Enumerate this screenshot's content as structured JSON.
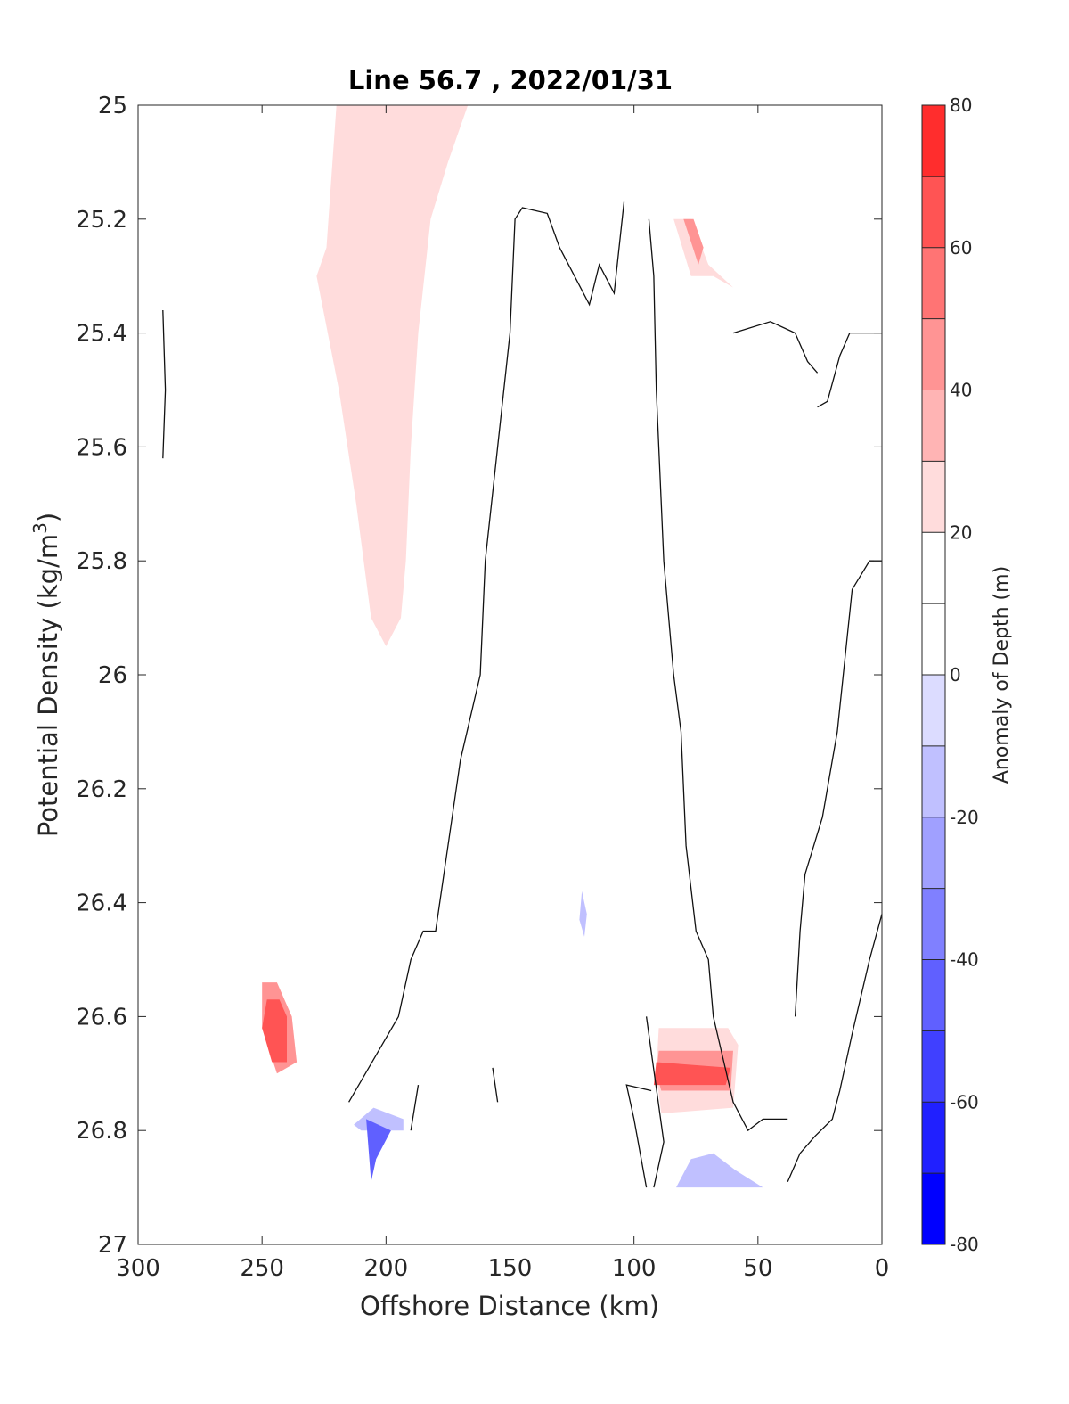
{
  "chart_data": {
    "type": "contour",
    "title": "Line 56.7 , 2022/01/31",
    "xlabel": "Offshore Distance (km)",
    "ylabel_text": "Potential Density (kg/m",
    "ylabel_sup": "3",
    "ylabel_close": ")",
    "xlim": [
      300,
      0
    ],
    "ylim": [
      25,
      27
    ],
    "xticks": [
      "300",
      "250",
      "200",
      "150",
      "100",
      "50",
      "0"
    ],
    "yticks": [
      "25",
      "25.2",
      "25.4",
      "25.6",
      "25.8",
      "26",
      "26.2",
      "26.4",
      "26.6",
      "26.8",
      "27"
    ],
    "colorbar": {
      "label": "Anomaly of Depth (m)",
      "range": [
        -80,
        80
      ],
      "ticks": [
        "80",
        "60",
        "40",
        "20",
        "0",
        "-20",
        "-40",
        "-60",
        "-80"
      ],
      "levels": [
        -80,
        -70,
        -60,
        -50,
        -40,
        -30,
        -20,
        -10,
        0,
        10,
        20,
        30,
        40,
        50,
        60,
        70,
        80
      ],
      "colors": [
        "#0000ff",
        "#2020ff",
        "#4040ff",
        "#6060ff",
        "#8080ff",
        "#a0a0ff",
        "#c0c0ff",
        "#dcdcff",
        "#ffffff",
        "#ffffff",
        "#ffdcdc",
        "#ffb4b4",
        "#ff9494",
        "#ff7474",
        "#ff5454",
        "#ff2d2d",
        "#ff0000"
      ]
    },
    "regions": [
      {
        "level": 15,
        "points": [
          [
            286,
            25
          ],
          [
            173,
            25
          ],
          [
            171,
            25.1
          ],
          [
            151,
            25.1
          ],
          [
            154,
            25.05
          ],
          [
            130,
            25
          ],
          [
            120,
            25
          ],
          [
            113,
            25.05
          ],
          [
            110,
            25.1
          ],
          [
            114,
            25.15
          ],
          [
            120,
            25.1
          ],
          [
            127,
            25.05
          ],
          [
            139,
            25.05
          ],
          [
            150,
            25.1
          ],
          [
            158,
            25.1
          ],
          [
            158,
            25.2
          ],
          [
            160,
            25.4
          ],
          [
            163,
            25.8
          ],
          [
            163,
            26.0
          ],
          [
            165,
            26.1
          ],
          [
            180,
            26.2
          ],
          [
            190,
            26.3
          ],
          [
            194,
            26.4
          ],
          [
            210,
            26.5
          ],
          [
            213,
            26.6
          ],
          [
            222,
            26.7
          ],
          [
            286,
            26.7
          ],
          [
            285,
            26.6
          ],
          [
            290,
            26.55
          ],
          [
            290,
            26.35
          ],
          [
            282,
            26.3
          ],
          [
            265,
            26.45
          ],
          [
            261,
            26.3
          ],
          [
            257,
            26.15
          ],
          [
            248,
            26.05
          ],
          [
            241,
            26.0
          ],
          [
            240,
            25.9
          ],
          [
            241,
            25.7
          ],
          [
            234,
            25.45
          ],
          [
            231,
            25.3
          ],
          [
            240,
            25.1
          ]
        ]
      },
      {
        "level": 25,
        "points": [
          [
            220,
            25
          ],
          [
            167,
            25
          ],
          [
            175,
            25.1
          ],
          [
            182,
            25.2
          ],
          [
            187,
            25.4
          ],
          [
            190,
            25.6
          ],
          [
            192,
            25.8
          ],
          [
            194,
            25.9
          ],
          [
            200,
            25.95
          ],
          [
            206,
            25.9
          ],
          [
            212,
            25.7
          ],
          [
            219,
            25.5
          ],
          [
            228,
            25.3
          ],
          [
            224,
            25.25
          ]
        ]
      },
      {
        "level": 15,
        "points": [
          [
            89,
            25.2
          ],
          [
            86,
            25.3
          ],
          [
            80,
            25.4
          ],
          [
            75,
            25.45
          ],
          [
            65,
            25.45
          ],
          [
            60,
            25.4
          ],
          [
            50,
            25.35
          ],
          [
            58,
            25.3
          ],
          [
            77,
            25.2
          ]
        ]
      },
      {
        "level": 25,
        "points": [
          [
            84,
            25.2
          ],
          [
            77,
            25.2
          ],
          [
            70,
            25.28
          ],
          [
            60,
            25.32
          ],
          [
            68,
            25.3
          ],
          [
            77,
            25.3
          ]
        ]
      },
      {
        "level": 40,
        "points": [
          [
            80,
            25.2
          ],
          [
            76,
            25.2
          ],
          [
            72,
            25.25
          ],
          [
            74,
            25.28
          ]
        ]
      },
      {
        "level": 15,
        "points": [
          [
            26,
            25.3
          ],
          [
            22,
            25.3
          ],
          [
            19,
            25.38
          ],
          [
            21,
            25.35
          ]
        ]
      },
      {
        "level": 15,
        "points": [
          [
            89,
            26.15
          ],
          [
            83,
            26.2
          ],
          [
            86,
            26.3
          ],
          [
            89,
            26.28
          ]
        ]
      },
      {
        "level": -15,
        "points": [
          [
            121,
            26.38
          ],
          [
            119,
            26.42
          ],
          [
            120,
            26.46
          ],
          [
            122,
            26.43
          ]
        ]
      },
      {
        "level": 15,
        "points": [
          [
            94,
            26.6
          ],
          [
            91,
            26.65
          ],
          [
            92,
            26.8
          ],
          [
            95,
            26.82
          ],
          [
            90,
            26.82
          ],
          [
            58,
            26.78
          ],
          [
            59,
            26.6
          ]
        ]
      },
      {
        "level": 25,
        "points": [
          [
            90,
            26.62
          ],
          [
            91,
            26.7
          ],
          [
            89,
            26.77
          ],
          [
            60,
            26.76
          ],
          [
            58,
            26.65
          ],
          [
            62,
            26.62
          ]
        ]
      },
      {
        "level": 40,
        "points": [
          [
            90,
            26.66
          ],
          [
            91,
            26.7
          ],
          [
            89,
            26.73
          ],
          [
            61,
            26.73
          ],
          [
            60,
            26.66
          ]
        ]
      },
      {
        "level": 65,
        "points": [
          [
            91,
            26.68
          ],
          [
            92,
            26.72
          ],
          [
            63,
            26.72
          ],
          [
            61,
            26.69
          ]
        ]
      },
      {
        "level": 15,
        "points": [
          [
            97,
            26.78
          ],
          [
            92,
            26.8
          ],
          [
            93,
            26.9
          ],
          [
            100,
            26.88
          ]
        ]
      },
      {
        "level": -15,
        "points": [
          [
            83,
            26.9
          ],
          [
            77,
            26.85
          ],
          [
            68,
            26.84
          ],
          [
            59,
            26.87
          ],
          [
            48,
            26.9
          ]
        ]
      },
      {
        "level": 15,
        "points": [
          [
            252,
            26.52
          ],
          [
            240,
            26.52
          ],
          [
            236,
            26.6
          ],
          [
            232,
            26.65
          ],
          [
            225,
            26.7
          ],
          [
            240,
            26.7
          ],
          [
            256,
            26.6
          ],
          [
            264,
            26.6
          ],
          [
            265,
            26.55
          ]
        ]
      },
      {
        "level": 40,
        "points": [
          [
            250,
            26.54
          ],
          [
            244,
            26.54
          ],
          [
            238,
            26.6
          ],
          [
            236,
            26.68
          ],
          [
            244,
            26.7
          ],
          [
            250,
            26.62
          ]
        ]
      },
      {
        "level": 65,
        "points": [
          [
            248,
            26.57
          ],
          [
            243,
            26.57
          ],
          [
            240,
            26.6
          ],
          [
            240,
            26.68
          ],
          [
            246,
            26.68
          ],
          [
            250,
            26.62
          ]
        ]
      },
      {
        "level": -15,
        "points": [
          [
            213,
            26.79
          ],
          [
            205,
            26.76
          ],
          [
            193,
            26.78
          ],
          [
            193,
            26.8
          ],
          [
            210,
            26.8
          ]
        ]
      },
      {
        "level": -45,
        "points": [
          [
            208,
            26.78
          ],
          [
            198,
            26.8
          ],
          [
            204,
            26.85
          ],
          [
            206,
            26.89
          ]
        ]
      }
    ],
    "contours": [
      [
        [
          290,
          25.36
        ],
        [
          289,
          25.5
        ],
        [
          290,
          25.62
        ]
      ],
      [
        [
          215,
          26.75
        ],
        [
          207,
          26.69
        ],
        [
          195,
          26.6
        ],
        [
          190,
          26.5
        ],
        [
          185,
          26.45
        ],
        [
          180,
          26.45
        ],
        [
          175,
          26.3
        ],
        [
          170,
          26.15
        ],
        [
          162,
          26.0
        ],
        [
          160,
          25.8
        ],
        [
          155,
          25.6
        ],
        [
          150,
          25.4
        ],
        [
          148,
          25.2
        ],
        [
          145,
          25.18
        ],
        [
          135,
          25.19
        ],
        [
          130,
          25.25
        ],
        [
          124,
          25.3
        ],
        [
          118,
          25.35
        ],
        [
          114,
          25.28
        ],
        [
          108,
          25.33
        ],
        [
          104,
          25.17
        ]
      ],
      [
        [
          94,
          25.2
        ],
        [
          92,
          25.3
        ],
        [
          91,
          25.5
        ],
        [
          88,
          25.8
        ],
        [
          84,
          26.0
        ],
        [
          81,
          26.1
        ],
        [
          79,
          26.3
        ],
        [
          75,
          26.45
        ],
        [
          70,
          26.5
        ],
        [
          68,
          26.6
        ],
        [
          60,
          26.75
        ],
        [
          54,
          26.8
        ],
        [
          48,
          26.78
        ],
        [
          38,
          26.78
        ]
      ],
      [
        [
          38,
          26.89
        ],
        [
          33,
          26.84
        ],
        [
          27,
          26.81
        ],
        [
          20,
          26.78
        ],
        [
          17,
          26.73
        ],
        [
          12,
          26.63
        ],
        [
          5,
          26.5
        ],
        [
          0,
          26.42
        ]
      ],
      [
        [
          35,
          26.6
        ],
        [
          33,
          26.45
        ],
        [
          31,
          26.35
        ],
        [
          24,
          26.25
        ],
        [
          18,
          26.1
        ],
        [
          12,
          25.85
        ],
        [
          5,
          25.8
        ],
        [
          0,
          25.8
        ]
      ],
      [
        [
          26,
          25.53
        ],
        [
          22,
          25.52
        ],
        [
          17,
          25.44
        ],
        [
          13,
          25.4
        ],
        [
          8,
          25.4
        ],
        [
          3,
          25.4
        ],
        [
          0,
          25.4
        ]
      ],
      [
        [
          95,
          26.6
        ],
        [
          88,
          26.82
        ],
        [
          92,
          26.9
        ]
      ],
      [
        [
          93,
          26.73
        ],
        [
          103,
          26.72
        ],
        [
          100,
          26.78
        ],
        [
          95,
          26.9
        ]
      ],
      [
        [
          187,
          26.72
        ],
        [
          190,
          26.8
        ]
      ],
      [
        [
          157,
          26.69
        ],
        [
          155,
          26.75
        ]
      ],
      [
        [
          60,
          25.4
        ],
        [
          45,
          25.38
        ],
        [
          35,
          25.4
        ],
        [
          30,
          25.45
        ],
        [
          26,
          25.47
        ]
      ]
    ]
  }
}
